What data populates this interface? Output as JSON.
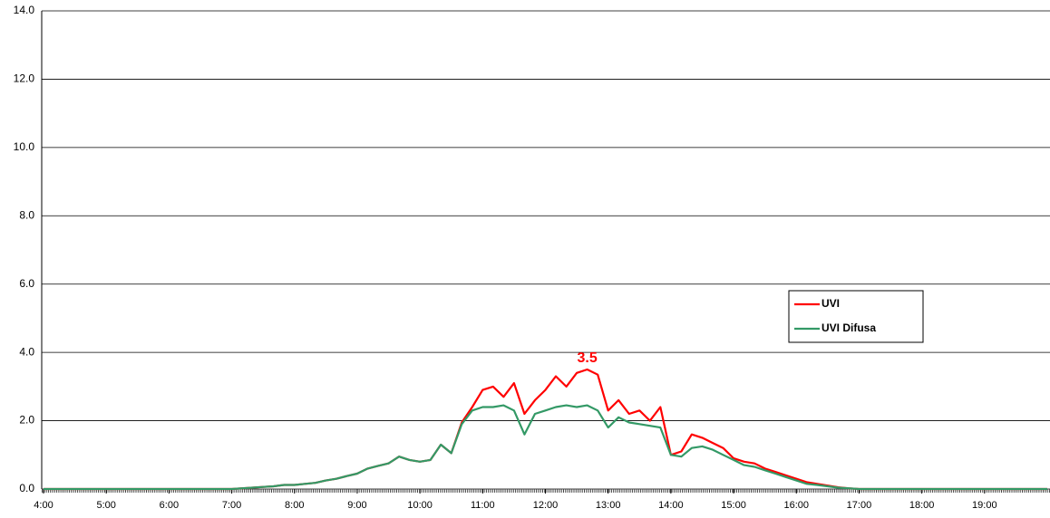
{
  "chart_data": {
    "type": "line",
    "x": [
      "4:00",
      "5:00",
      "6:00",
      "7:00",
      "7:10",
      "7:20",
      "7:30",
      "7:40",
      "7:50",
      "8:00",
      "8:10",
      "8:20",
      "8:30",
      "8:40",
      "8:50",
      "9:00",
      "9:10",
      "9:20",
      "9:30",
      "9:40",
      "9:50",
      "10:00",
      "10:10",
      "10:20",
      "10:30",
      "10:40",
      "10:50",
      "11:00",
      "11:10",
      "11:20",
      "11:30",
      "11:40",
      "11:50",
      "12:00",
      "12:10",
      "12:20",
      "12:30",
      "12:40",
      "12:50",
      "13:00",
      "13:10",
      "13:20",
      "13:30",
      "13:40",
      "13:50",
      "14:00",
      "14:10",
      "14:20",
      "14:30",
      "14:40",
      "14:50",
      "15:00",
      "15:10",
      "15:20",
      "15:30",
      "15:40",
      "15:50",
      "16:00",
      "16:10",
      "16:20",
      "16:30",
      "16:40",
      "16:50",
      "17:00",
      "17:10",
      "17:20",
      "17:30",
      "18:00",
      "19:00",
      "20:00"
    ],
    "series": [
      {
        "name": "UVI",
        "color": "#ff0000",
        "values": [
          0,
          0,
          0,
          0,
          0.02,
          0.04,
          0.06,
          0.08,
          0.12,
          0.12,
          0.15,
          0.18,
          0.25,
          0.3,
          0.38,
          0.45,
          0.6,
          0.68,
          0.75,
          0.95,
          0.85,
          0.8,
          0.85,
          1.3,
          1.05,
          1.95,
          2.4,
          2.9,
          3.0,
          2.7,
          3.1,
          2.2,
          2.6,
          2.9,
          3.3,
          3.0,
          3.4,
          3.5,
          3.35,
          2.3,
          2.6,
          2.2,
          2.3,
          2.0,
          2.4,
          1.0,
          1.1,
          1.6,
          1.5,
          1.35,
          1.2,
          0.9,
          0.8,
          0.75,
          0.6,
          0.5,
          0.4,
          0.3,
          0.2,
          0.15,
          0.1,
          0.05,
          0.02,
          0,
          0,
          0,
          0,
          0,
          0,
          0
        ]
      },
      {
        "name": "UVI Difusa",
        "color": "#339966",
        "values": [
          0,
          0,
          0,
          0,
          0.02,
          0.04,
          0.06,
          0.08,
          0.12,
          0.12,
          0.15,
          0.18,
          0.25,
          0.3,
          0.38,
          0.45,
          0.6,
          0.68,
          0.75,
          0.95,
          0.85,
          0.8,
          0.85,
          1.3,
          1.05,
          1.9,
          2.3,
          2.4,
          2.4,
          2.45,
          2.3,
          1.6,
          2.2,
          2.3,
          2.4,
          2.45,
          2.4,
          2.45,
          2.3,
          1.8,
          2.1,
          1.95,
          1.9,
          1.85,
          1.8,
          1.0,
          0.95,
          1.2,
          1.25,
          1.15,
          1.0,
          0.85,
          0.7,
          0.65,
          0.55,
          0.45,
          0.35,
          0.25,
          0.15,
          0.12,
          0.08,
          0.04,
          0.02,
          0,
          0,
          0,
          0,
          0,
          0,
          0
        ]
      }
    ],
    "xlim": [
      "4:00",
      "20:00"
    ],
    "xticks": [
      "4:00",
      "5:00",
      "6:00",
      "7:00",
      "8:00",
      "9:00",
      "10:00",
      "11:00",
      "12:00",
      "13:00",
      "14:00",
      "15:00",
      "16:00",
      "17:00",
      "18:00",
      "19:00"
    ],
    "ylim": [
      0,
      14
    ],
    "yticks": [
      {
        "value": 0,
        "label": "0.0"
      },
      {
        "value": 2,
        "label": "2.0"
      },
      {
        "value": 4,
        "label": "4.0"
      },
      {
        "value": 6,
        "label": "6.0"
      },
      {
        "value": 8,
        "label": "8.0"
      },
      {
        "value": 10,
        "label": "10.0"
      },
      {
        "value": 12,
        "label": "12.0"
      },
      {
        "value": 14,
        "label": "14.0"
      }
    ],
    "grid": true,
    "legend": "right",
    "annotations": [
      {
        "text": "3.5",
        "x": "12:40",
        "y": 3.5
      }
    ]
  }
}
